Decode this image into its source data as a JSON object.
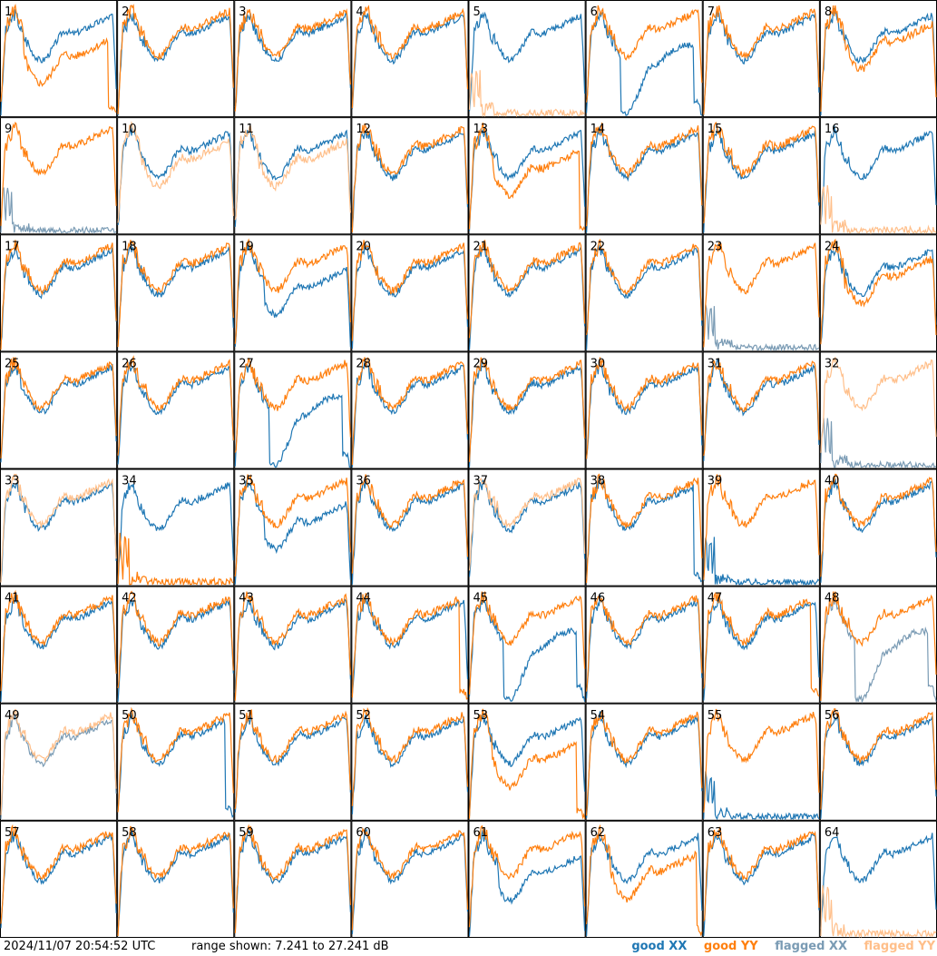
{
  "footer": {
    "timestamp": "2024/11/07 20:54:52 UTC",
    "range_text": "range shown: 7.241 to 27.241 dB"
  },
  "colors": {
    "good_xx": "#1f77b4",
    "good_yy": "#ff7f0e",
    "flagged_xx": "#7a9bb4",
    "flagged_yy": "#ffbf8a"
  },
  "chart_data": {
    "type": "line",
    "title": "",
    "ylim": [
      7.241,
      27.241
    ],
    "grid": false,
    "legend": [
      "good XX",
      "good YY",
      "flagged XX",
      "flagged YY"
    ],
    "legend_position": "bottom-right",
    "panels": [
      {
        "label": "1",
        "xx": "good",
        "yy": "good",
        "profile": "yy_drop_mid"
      },
      {
        "label": "2",
        "xx": "good",
        "yy": "good",
        "profile": "normal"
      },
      {
        "label": "3",
        "xx": "good",
        "yy": "good",
        "profile": "normal"
      },
      {
        "label": "4",
        "xx": "good",
        "yy": "good",
        "profile": "normal"
      },
      {
        "label": "5",
        "xx": "good",
        "yy": "flagged",
        "profile": "yy_dead"
      },
      {
        "label": "6",
        "xx": "good",
        "yy": "good",
        "profile": "xx_drop_mid"
      },
      {
        "label": "7",
        "xx": "good",
        "yy": "good",
        "profile": "normal"
      },
      {
        "label": "8",
        "xx": "good",
        "yy": "good",
        "profile": "yy_low"
      },
      {
        "label": "9",
        "xx": "flagged",
        "yy": "good",
        "profile": "xx_dead"
      },
      {
        "label": "10",
        "xx": "good",
        "yy": "flagged",
        "profile": "yy_low"
      },
      {
        "label": "11",
        "xx": "good",
        "yy": "flagged",
        "profile": "yy_low"
      },
      {
        "label": "12",
        "xx": "good",
        "yy": "good",
        "profile": "normal"
      },
      {
        "label": "13",
        "xx": "good",
        "yy": "good",
        "profile": "yy_low_drop"
      },
      {
        "label": "14",
        "xx": "good",
        "yy": "good",
        "profile": "normal"
      },
      {
        "label": "15",
        "xx": "good",
        "yy": "good",
        "profile": "normal"
      },
      {
        "label": "16",
        "xx": "good",
        "yy": "flagged",
        "profile": "yy_dead"
      },
      {
        "label": "17",
        "xx": "good",
        "yy": "good",
        "profile": "normal"
      },
      {
        "label": "18",
        "xx": "good",
        "yy": "good",
        "profile": "normal"
      },
      {
        "label": "19",
        "xx": "good",
        "yy": "good",
        "profile": "xx_low"
      },
      {
        "label": "20",
        "xx": "good",
        "yy": "good",
        "profile": "normal"
      },
      {
        "label": "21",
        "xx": "good",
        "yy": "good",
        "profile": "normal"
      },
      {
        "label": "22",
        "xx": "good",
        "yy": "good",
        "profile": "normal"
      },
      {
        "label": "23",
        "xx": "flagged",
        "yy": "good",
        "profile": "xx_dead"
      },
      {
        "label": "24",
        "xx": "good",
        "yy": "good",
        "profile": "yy_low"
      },
      {
        "label": "25",
        "xx": "good",
        "yy": "good",
        "profile": "normal"
      },
      {
        "label": "26",
        "xx": "good",
        "yy": "good",
        "profile": "normal"
      },
      {
        "label": "27",
        "xx": "good",
        "yy": "good",
        "profile": "xx_drop_mid"
      },
      {
        "label": "28",
        "xx": "good",
        "yy": "good",
        "profile": "normal"
      },
      {
        "label": "29",
        "xx": "good",
        "yy": "good",
        "profile": "normal"
      },
      {
        "label": "30",
        "xx": "good",
        "yy": "good",
        "profile": "normal"
      },
      {
        "label": "31",
        "xx": "good",
        "yy": "good",
        "profile": "normal"
      },
      {
        "label": "32",
        "xx": "flagged",
        "yy": "flagged",
        "profile": "xx_dead"
      },
      {
        "label": "33",
        "xx": "good",
        "yy": "flagged",
        "profile": "normal"
      },
      {
        "label": "34",
        "xx": "good",
        "yy": "good",
        "profile": "yy_dead"
      },
      {
        "label": "35",
        "xx": "good",
        "yy": "good",
        "profile": "xx_low"
      },
      {
        "label": "36",
        "xx": "good",
        "yy": "good",
        "profile": "normal"
      },
      {
        "label": "37",
        "xx": "good",
        "yy": "flagged",
        "profile": "normal"
      },
      {
        "label": "38",
        "xx": "good",
        "yy": "good",
        "profile": "xx_dropout"
      },
      {
        "label": "39",
        "xx": "good",
        "yy": "good",
        "profile": "xx_dead"
      },
      {
        "label": "40",
        "xx": "good",
        "yy": "good",
        "profile": "normal"
      },
      {
        "label": "41",
        "xx": "good",
        "yy": "good",
        "profile": "normal"
      },
      {
        "label": "42",
        "xx": "good",
        "yy": "good",
        "profile": "normal"
      },
      {
        "label": "43",
        "xx": "good",
        "yy": "good",
        "profile": "normal"
      },
      {
        "label": "44",
        "xx": "good",
        "yy": "good",
        "profile": "yy_dropout"
      },
      {
        "label": "45",
        "xx": "good",
        "yy": "good",
        "profile": "xx_drop_mid"
      },
      {
        "label": "46",
        "xx": "good",
        "yy": "good",
        "profile": "normal"
      },
      {
        "label": "47",
        "xx": "good",
        "yy": "good",
        "profile": "yy_dropout"
      },
      {
        "label": "48",
        "xx": "flagged",
        "yy": "good",
        "profile": "xx_drop_mid"
      },
      {
        "label": "49",
        "xx": "flagged",
        "yy": "flagged",
        "profile": "normal"
      },
      {
        "label": "50",
        "xx": "good",
        "yy": "good",
        "profile": "xx_dropout"
      },
      {
        "label": "51",
        "xx": "good",
        "yy": "good",
        "profile": "normal"
      },
      {
        "label": "52",
        "xx": "good",
        "yy": "good",
        "profile": "normal"
      },
      {
        "label": "53",
        "xx": "good",
        "yy": "good",
        "profile": "yy_drop_mid"
      },
      {
        "label": "54",
        "xx": "good",
        "yy": "good",
        "profile": "normal"
      },
      {
        "label": "55",
        "xx": "good",
        "yy": "good",
        "profile": "xx_dead"
      },
      {
        "label": "56",
        "xx": "good",
        "yy": "good",
        "profile": "normal"
      },
      {
        "label": "57",
        "xx": "good",
        "yy": "good",
        "profile": "normal"
      },
      {
        "label": "58",
        "xx": "good",
        "yy": "good",
        "profile": "normal"
      },
      {
        "label": "59",
        "xx": "good",
        "yy": "good",
        "profile": "normal"
      },
      {
        "label": "60",
        "xx": "good",
        "yy": "good",
        "profile": "normal"
      },
      {
        "label": "61",
        "xx": "good",
        "yy": "good",
        "profile": "xx_low"
      },
      {
        "label": "62",
        "xx": "good",
        "yy": "good",
        "profile": "yy_low_drop"
      },
      {
        "label": "63",
        "xx": "good",
        "yy": "good",
        "profile": "normal"
      },
      {
        "label": "64",
        "xx": "good",
        "yy": "flagged",
        "profile": "yy_dead"
      }
    ]
  },
  "legend": {
    "good_xx": "good XX",
    "good_yy": "good YY",
    "flagged_xx": "flagged XX",
    "flagged_yy": "flagged YY"
  }
}
